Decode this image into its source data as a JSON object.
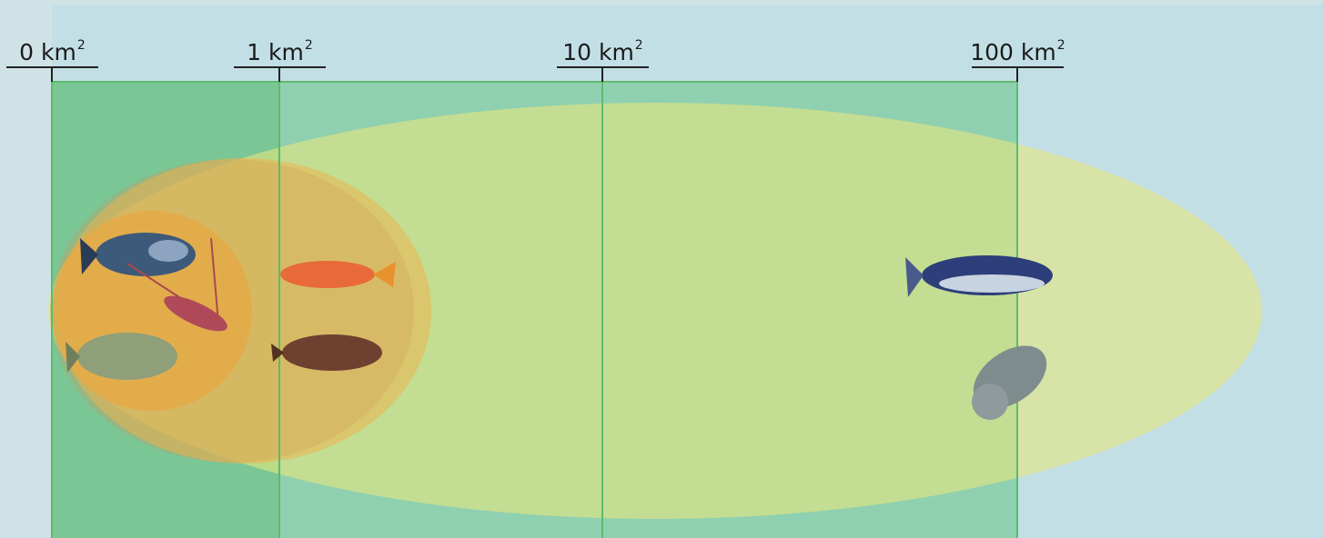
{
  "scale": {
    "ticks": [
      {
        "label": "0 km",
        "superscript": "2"
      },
      {
        "label": "1 km",
        "superscript": "2"
      },
      {
        "label": "10 km",
        "superscript": "2"
      },
      {
        "label": "100 km",
        "superscript": "2"
      }
    ]
  }
}
